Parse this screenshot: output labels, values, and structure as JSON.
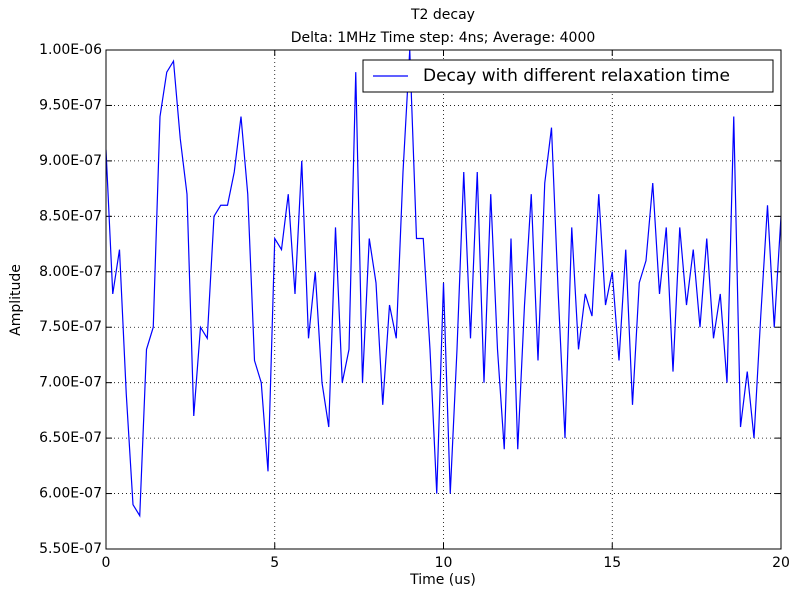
{
  "chart_data": {
    "type": "line",
    "title": "T2 decay",
    "subtitle": "Delta: 1MHz Time step: 4ns; Average: 4000",
    "x_label": "Time (us)",
    "y_label": "Amplitude",
    "x": [
      0,
      0.2,
      0.4,
      0.6,
      0.8,
      1.0,
      1.2,
      1.4,
      1.6,
      1.8,
      2.0,
      2.2,
      2.4,
      2.6,
      2.8,
      3.0,
      3.2,
      3.4,
      3.6,
      3.8,
      4.0,
      4.2,
      4.4,
      4.6,
      4.8,
      5.0,
      5.2,
      5.4,
      5.6,
      5.8,
      6.0,
      6.2,
      6.4,
      6.6,
      6.8,
      7.0,
      7.2,
      7.4,
      7.6,
      7.8,
      8.0,
      8.2,
      8.4,
      8.6,
      8.8,
      9.0,
      9.2,
      9.4,
      9.6,
      9.8,
      10.0,
      10.2,
      10.4,
      10.6,
      10.8,
      11.0,
      11.2,
      11.4,
      11.6,
      11.8,
      12.0,
      12.2,
      12.4,
      12.6,
      12.8,
      13.0,
      13.2,
      13.4,
      13.6,
      13.8,
      14.0,
      14.2,
      14.4,
      14.6,
      14.8,
      15.0,
      15.2,
      15.4,
      15.6,
      15.8,
      16.0,
      16.2,
      16.4,
      16.6,
      16.8,
      17.0,
      17.2,
      17.4,
      17.6,
      17.8,
      18.0,
      18.2,
      18.4,
      18.6,
      18.8,
      19.0,
      19.2,
      19.4,
      19.6,
      19.8,
      20.0
    ],
    "series": [
      {
        "name": "Decay with different relaxation time",
        "color": "#0000ff",
        "values": [
          9.1e-07,
          7.8e-07,
          8.2e-07,
          6.9e-07,
          5.9e-07,
          5.8e-07,
          7.3e-07,
          7.5e-07,
          9.4e-07,
          9.8e-07,
          9.9e-07,
          9.2e-07,
          8.7e-07,
          6.7e-07,
          7.5e-07,
          7.4e-07,
          8.5e-07,
          8.6e-07,
          8.6e-07,
          8.9e-07,
          9.4e-07,
          8.7e-07,
          7.2e-07,
          7e-07,
          6.2e-07,
          8.3e-07,
          8.2e-07,
          8.7e-07,
          7.8e-07,
          9e-07,
          7.4e-07,
          8e-07,
          7e-07,
          6.6e-07,
          8.4e-07,
          7e-07,
          7.3e-07,
          9.8e-07,
          7e-07,
          8.3e-07,
          7.9e-07,
          6.8e-07,
          7.7e-07,
          7.4e-07,
          8.9e-07,
          1e-06,
          8.3e-07,
          8.3e-07,
          7.3e-07,
          6e-07,
          7.9e-07,
          6e-07,
          7.3e-07,
          8.9e-07,
          7.4e-07,
          8.9e-07,
          7e-07,
          8.7e-07,
          7.3e-07,
          6.4e-07,
          8.3e-07,
          6.4e-07,
          7.7e-07,
          8.7e-07,
          7.2e-07,
          8.8e-07,
          9.3e-07,
          7.8e-07,
          6.5e-07,
          8.4e-07,
          7.3e-07,
          7.8e-07,
          7.6e-07,
          8.7e-07,
          7.7e-07,
          8e-07,
          7.2e-07,
          8.2e-07,
          6.8e-07,
          7.9e-07,
          8.1e-07,
          8.8e-07,
          7.8e-07,
          8.4e-07,
          7.1e-07,
          8.4e-07,
          7.7e-07,
          8.2e-07,
          7.5e-07,
          8.3e-07,
          7.4e-07,
          7.8e-07,
          7e-07,
          9.4e-07,
          6.6e-07,
          7.1e-07,
          6.5e-07,
          7.6e-07,
          8.6e-07,
          7.5e-07,
          8.5e-07
        ]
      }
    ],
    "xlim": [
      0,
      20
    ],
    "xticks": [
      0,
      5,
      10,
      15,
      20
    ],
    "ylim": [
      5.5e-07,
      1e-06
    ],
    "yticks": [
      {
        "value": 5.5e-07,
        "label": "5.50E-07"
      },
      {
        "value": 6e-07,
        "label": "6.00E-07"
      },
      {
        "value": 6.5e-07,
        "label": "6.50E-07"
      },
      {
        "value": 7e-07,
        "label": "7.00E-07"
      },
      {
        "value": 7.5e-07,
        "label": "7.50E-07"
      },
      {
        "value": 8e-07,
        "label": "8.00E-07"
      },
      {
        "value": 8.5e-07,
        "label": "8.50E-07"
      },
      {
        "value": 9e-07,
        "label": "9.00E-07"
      },
      {
        "value": 9.5e-07,
        "label": "9.50E-07"
      },
      {
        "value": 1e-06,
        "label": "1.00E-06"
      }
    ],
    "grid": true,
    "legend": "upper right"
  }
}
